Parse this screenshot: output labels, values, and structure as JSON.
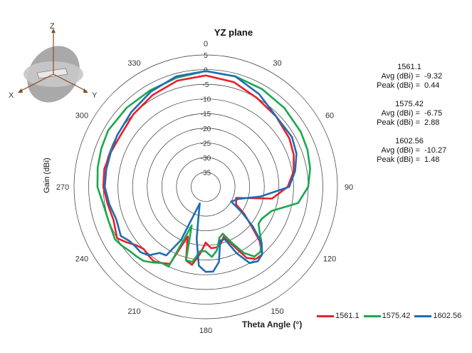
{
  "chart_data": {
    "type": "polar-line",
    "title": "YZ plane",
    "xlabel": "Theta  Angle (°)",
    "ylabel": "Gain (dBi)",
    "r_range": [
      -40,
      5
    ],
    "r_ticks": [
      "5",
      "0",
      "-5",
      "-10",
      "-15",
      "-20",
      "-25",
      "-30",
      "-35"
    ],
    "r_tick_values": [
      5,
      0,
      -5,
      -10,
      -15,
      -20,
      -25,
      -30,
      -35
    ],
    "angle_ticks": [
      "0",
      "30",
      "60",
      "90",
      "120",
      "150",
      "180",
      "210",
      "240",
      "270",
      "300",
      "330"
    ],
    "angle_tick_values": [
      0,
      30,
      60,
      90,
      120,
      150,
      180,
      210,
      240,
      270,
      300,
      330
    ],
    "angles": [
      0,
      15,
      30,
      45,
      60,
      70,
      80,
      90,
      100,
      110,
      120,
      125,
      130,
      135,
      140,
      145,
      150,
      155,
      160,
      165,
      170,
      175,
      180,
      185,
      190,
      195,
      200,
      205,
      210,
      215,
      220,
      225,
      230,
      235,
      240,
      250,
      260,
      270,
      280,
      290,
      300,
      315,
      330,
      345
    ],
    "series": [
      {
        "name": "1561.1",
        "color": "#e8202a",
        "values": [
          -2.0,
          -3.0,
          -5.0,
          -6.0,
          -7.0,
          -8.0,
          -9.5,
          -12.0,
          -17.0,
          -29.0,
          -28.0,
          -24.0,
          -20.0,
          -14.0,
          -10.0,
          -10.0,
          -12.0,
          -18.0,
          -22.0,
          -20.0,
          -19.0,
          -19.0,
          -21.0,
          -17.0,
          -13.0,
          -14.0,
          -22.0,
          -11.0,
          -10.0,
          -9.0,
          -9.5,
          -10.0,
          -9.0,
          -7.0,
          -5.0,
          -6.5,
          -6.0,
          -5.0,
          -4.8,
          -5.5,
          -6.0,
          -5.0,
          -3.8,
          -2.5
        ]
      },
      {
        "name": "1575.42",
        "color": "#1aa84f",
        "values": [
          -0.5,
          -1.0,
          -1.5,
          -2.0,
          -2.5,
          -3.0,
          -3.8,
          -5.0,
          -8.0,
          -16.0,
          -18.0,
          -18.0,
          -16.0,
          -13.0,
          -11.0,
          -11.0,
          -14.0,
          -19.0,
          -23.0,
          -22.0,
          -18.0,
          -16.0,
          -18.0,
          -18.0,
          -14.0,
          -14.0,
          -26.0,
          -10.0,
          -10.0,
          -8.5,
          -7.0,
          -6.5,
          -6.0,
          -5.0,
          -4.2,
          -4.8,
          -4.5,
          -3.0,
          -2.5,
          -2.0,
          -1.5,
          -1.8,
          -2.0,
          -1.5
        ]
      },
      {
        "name": "1602.56",
        "color": "#1f6db4",
        "values": [
          -0.5,
          -1.0,
          -3.5,
          -6.0,
          -6.0,
          -7.0,
          -9.0,
          -11.5,
          -21.0,
          -28.0,
          -30.0,
          -25.0,
          -19.0,
          -13.0,
          -10.0,
          -9.0,
          -10.0,
          -15.0,
          -21.0,
          -21.0,
          -14.0,
          -11.0,
          -11.0,
          -13.0,
          -22.0,
          -31.0,
          -34.0,
          -20.0,
          -13.0,
          -12.5,
          -9.5,
          -8.5,
          -8.5,
          -8.0,
          -6.5,
          -7.5,
          -6.5,
          -5.5,
          -5.5,
          -5.5,
          -5.0,
          -4.0,
          -2.5,
          -1.0
        ]
      }
    ],
    "legend_position": "bottom-right",
    "grid": true
  },
  "stats": [
    {
      "freq": "1561.1",
      "avg_label": "Avg (dBi) =",
      "avg": "-9.32",
      "peak_label": "Peak (dBi) =",
      "peak": "0.44"
    },
    {
      "freq": "1575.42",
      "avg_label": "Avg (dBi) =",
      "avg": "-6.75",
      "peak_label": "Peak (dBi) =",
      "peak": "2.88"
    },
    {
      "freq": "1602.56",
      "avg_label": "Avg (dBi) =",
      "avg": "-10.27",
      "peak_label": "Peak (dBi) =",
      "peak": "1.48"
    }
  ],
  "axes_icon": {
    "x_label": "X",
    "y_label": "Y",
    "z_label": "Z"
  }
}
